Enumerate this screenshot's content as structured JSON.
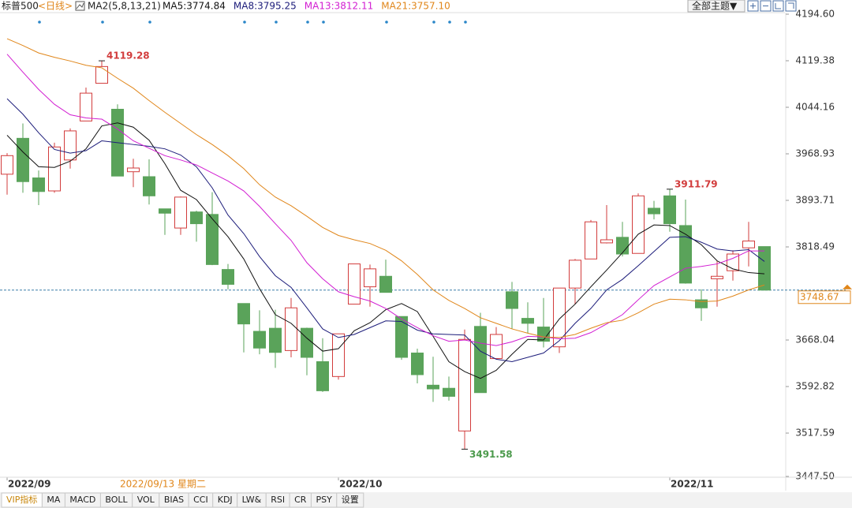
{
  "chart_data": {
    "type": "candlestick",
    "title": "标普500",
    "period": "<日线>",
    "ma_label": "MA2(5,8,13,21)",
    "theme_button": "全部主题▼",
    "cursor_label": "2022/09/13 星期二",
    "categories": [
      "2022/09",
      null,
      null,
      null,
      null,
      null,
      null,
      null,
      null,
      null,
      null,
      null,
      null,
      null,
      null,
      null,
      null,
      null,
      null,
      null,
      null,
      "2022/10",
      null,
      null,
      null,
      null,
      null,
      null,
      null,
      null,
      null,
      null,
      null,
      null,
      null,
      null,
      null,
      null,
      null,
      null,
      null,
      null,
      "2022/11",
      null,
      null,
      null,
      null,
      null,
      null
    ],
    "open": [
      3936,
      3994,
      3930,
      3909,
      3959,
      4022,
      4083,
      4041,
      3940,
      3932,
      3880,
      3849,
      3875,
      3871,
      3782,
      3727,
      3682,
      3687,
      3651,
      3687,
      3633,
      3609,
      3726,
      3754,
      3771,
      3706,
      3647,
      3595,
      3590,
      3521,
      3690,
      3638,
      3746,
      3703,
      3689,
      3657,
      3752,
      3799,
      3825,
      3834,
      3808,
      3881,
      3901,
      3853,
      3733,
      3767,
      3780,
      3817,
      3819
    ],
    "high": [
      3970,
      4018,
      3942,
      3987,
      4010,
      4076,
      4119.28,
      4049,
      3961,
      3960,
      3880,
      3900,
      3877,
      3907,
      3791,
      3727,
      3716,
      3717,
      3736,
      3688,
      3671,
      3678,
      3791,
      3790,
      3798,
      3706,
      3654,
      3641,
      3609,
      3685,
      3712,
      3689,
      3762,
      3729,
      3736,
      3752,
      3799,
      3862,
      3886,
      3859,
      3905,
      3893,
      3911.79,
      3895,
      3750,
      3796,
      3813,
      3859,
      3819
    ],
    "low": [
      3903,
      3906,
      3886,
      3906,
      3945,
      4022,
      4083,
      3933,
      3915,
      3887,
      3838,
      3838,
      3827,
      3789,
      3750,
      3648,
      3645,
      3623,
      3640,
      3611,
      3584,
      3604,
      3726,
      3722,
      3745,
      3636,
      3598,
      3568,
      3570,
      3491.58,
      3584,
      3638,
      3686,
      3679,
      3656,
      3647,
      3726,
      3799,
      3824,
      3803,
      3808,
      3863,
      3843,
      3759,
      3699,
      3722,
      3764,
      3787,
      3748
    ],
    "close": [
      3966,
      3924,
      3908,
      3980,
      4006,
      4067,
      4110,
      3933,
      3946,
      3901,
      3873,
      3899,
      3856,
      3790,
      3758,
      3694,
      3655,
      3648,
      3720,
      3640,
      3586,
      3678,
      3791,
      3783,
      3745,
      3640,
      3612,
      3589,
      3577,
      3669,
      3583,
      3677,
      3719,
      3695,
      3666,
      3752,
      3797,
      3859,
      3830,
      3807,
      3901,
      3872,
      3856,
      3760,
      3720,
      3771,
      3807,
      3828,
      3748.67
    ],
    "up_color": "#d23c3c",
    "down_color": "#5aa35a",
    "series": [
      {
        "label": "MA5:3774.84",
        "color": "#111111",
        "values": [
          3999,
          3972,
          3948,
          3947,
          3957,
          3977,
          4014,
          4019,
          4012,
          3991,
          3953,
          3910,
          3895,
          3864,
          3835,
          3799,
          3751,
          3709,
          3695,
          3671,
          3650,
          3654,
          3683,
          3696,
          3717,
          3727,
          3714,
          3674,
          3633,
          3617,
          3606,
          3619,
          3645,
          3669,
          3668,
          3702,
          3726,
          3754,
          3781,
          3809,
          3839,
          3854,
          3853,
          3839,
          3822,
          3796,
          3783,
          3777,
          3775
        ]
      },
      {
        "label": "MA8:3795.25",
        "color": "#1c1c7a",
        "values": [
          4058,
          4033,
          4003,
          3976,
          3970,
          3974,
          3990,
          3987,
          3984,
          3981,
          3977,
          3967,
          3948,
          3914,
          3870,
          3840,
          3803,
          3772,
          3753,
          3720,
          3686,
          3672,
          3677,
          3688,
          3699,
          3698,
          3684,
          3678,
          3677,
          3676,
          3650,
          3637,
          3633,
          3640,
          3647,
          3667,
          3695,
          3719,
          3749,
          3766,
          3788,
          3811,
          3834,
          3835,
          3826,
          3815,
          3812,
          3814,
          3795
        ]
      },
      {
        "label": "MA13:3812.11",
        "color": "#d21ed2",
        "values": [
          4130,
          4101,
          4073,
          4049,
          4032,
          4027,
          4025,
          4009,
          3990,
          3978,
          3966,
          3959,
          3951,
          3938,
          3925,
          3909,
          3884,
          3856,
          3829,
          3793,
          3767,
          3746,
          3738,
          3731,
          3719,
          3702,
          3688,
          3675,
          3666,
          3668,
          3663,
          3659,
          3665,
          3674,
          3673,
          3670,
          3671,
          3680,
          3694,
          3709,
          3733,
          3756,
          3770,
          3784,
          3787,
          3791,
          3800,
          3812,
          3812
        ]
      },
      {
        "label": "MA21:3757.10",
        "color": "#e0861a",
        "values": [
          4155,
          4144,
          4132,
          4125,
          4119,
          4112,
          4108,
          4091,
          4075,
          4055,
          4036,
          4018,
          4000,
          3984,
          3966,
          3945,
          3919,
          3899,
          3885,
          3868,
          3850,
          3837,
          3830,
          3824,
          3813,
          3796,
          3774,
          3749,
          3732,
          3719,
          3704,
          3695,
          3686,
          3679,
          3673,
          3672,
          3677,
          3687,
          3696,
          3700,
          3712,
          3726,
          3734,
          3733,
          3730,
          3731,
          3739,
          3749,
          3757
        ]
      }
    ],
    "annotations": [
      {
        "index": 6,
        "value": 4119.28,
        "color": "#d23c3c"
      },
      {
        "index": 42,
        "value": 3911.79,
        "color": "#d23c3c"
      },
      {
        "index": 29,
        "value": 3491.58,
        "color": "#4c9a4c"
      }
    ],
    "last_price": 3748.67,
    "ylim": [
      3447.5,
      4194.6
    ],
    "yticks": [
      {
        "value": 4194.6,
        "label": "4194.60"
      },
      4119.38,
      4044.16,
      3968.93,
      3893.71,
      3818.49,
      3668.04,
      3592.82,
      3517.59,
      {
        "value": 3447.5,
        "label": "3447.50"
      }
    ],
    "grid": false,
    "tabs": [
      "VIP指标",
      "MA",
      "MACD",
      "BOLL",
      "VOL",
      "BIAS",
      "CCI",
      "KDJ",
      "LW&",
      "RSI",
      "CR",
      "PSY",
      "设置"
    ]
  }
}
